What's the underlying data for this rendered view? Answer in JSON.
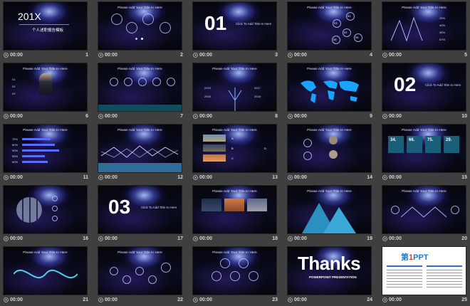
{
  "slides": [
    {
      "number": "1",
      "time": "00:00",
      "heading": "201X",
      "subtitle": "个人述职报告模板"
    },
    {
      "number": "2",
      "time": "00:00",
      "title": "Please Add Your Title In Here"
    },
    {
      "number": "3",
      "time": "00:00",
      "big": "01",
      "caption": "Click To Add Title In Here"
    },
    {
      "number": "4",
      "time": "00:00",
      "title": "Please Add Your Title In Here",
      "labels": [
        "01",
        "02",
        "03",
        "04",
        "05"
      ]
    },
    {
      "number": "5",
      "time": "00:00",
      "title": "Please Add Your Title In Here",
      "labels": [
        "25%",
        "40%",
        "36%",
        "67%"
      ]
    },
    {
      "number": "6",
      "time": "00:00",
      "title": "Please Add Your Title In Here",
      "labels": [
        "01",
        "02",
        "03"
      ]
    },
    {
      "number": "7",
      "time": "00:00",
      "title": "Please Add Your Title In Here"
    },
    {
      "number": "8",
      "time": "00:00",
      "title": "Please Add Your Title In Here",
      "labels": [
        "2015",
        "2016",
        "2017",
        "2018"
      ]
    },
    {
      "number": "9",
      "time": "00:00",
      "title": "Please Add Your Title In Here"
    },
    {
      "number": "10",
      "time": "00:00",
      "big": "02",
      "caption": "Click To Add Title In Here"
    },
    {
      "number": "11",
      "time": "00:00",
      "title": "Please Add Your Title In Here",
      "labels": [
        "70%",
        "80%",
        "90%",
        "55%",
        "60%"
      ]
    },
    {
      "number": "12",
      "time": "00:00",
      "title": "Please Add Your Title In Here"
    },
    {
      "number": "13",
      "time": "00:00",
      "title": "Please Add Your Title In Here",
      "labels": [
        "A",
        "B",
        "C",
        "D"
      ]
    },
    {
      "number": "14",
      "time": "00:00",
      "title": "Please Add Your Title In Here"
    },
    {
      "number": "15",
      "time": "00:00",
      "title": "Please Add Your Title In Here",
      "labels": [
        "34.",
        "66.",
        "75.",
        "29."
      ]
    },
    {
      "number": "16",
      "time": "00:00"
    },
    {
      "number": "17",
      "time": "00:00",
      "big": "03",
      "caption": "Click To Add Title In Here"
    },
    {
      "number": "18",
      "time": "00:00",
      "title": "Please Add Your Title In Here"
    },
    {
      "number": "19",
      "time": "00:00",
      "title": "Please Add Your Title In Here"
    },
    {
      "number": "20",
      "time": "00:00",
      "title": "Please Add Your Title In Here"
    },
    {
      "number": "21",
      "time": "00:00",
      "title": "Please Add Your Title In Here"
    },
    {
      "number": "22",
      "time": "00:00",
      "title": "Please Add Your Title In Here"
    },
    {
      "number": "23",
      "time": "00:00",
      "title": "Please Add Your Title In Here"
    },
    {
      "number": "24",
      "time": "00:00",
      "big": "Thanks",
      "caption": "POWERPOINT PRESENTATION"
    },
    {
      "number": "25",
      "time": "00:00",
      "logo_a": "第",
      "logo_b": "1",
      "logo_c": "PPT"
    }
  ],
  "colors": {
    "background": "#3f3f3f",
    "accent": "#4a5cff",
    "text": "#d4d4d4"
  },
  "icons": {
    "play": "play-icon",
    "map": "world-map-icon"
  }
}
